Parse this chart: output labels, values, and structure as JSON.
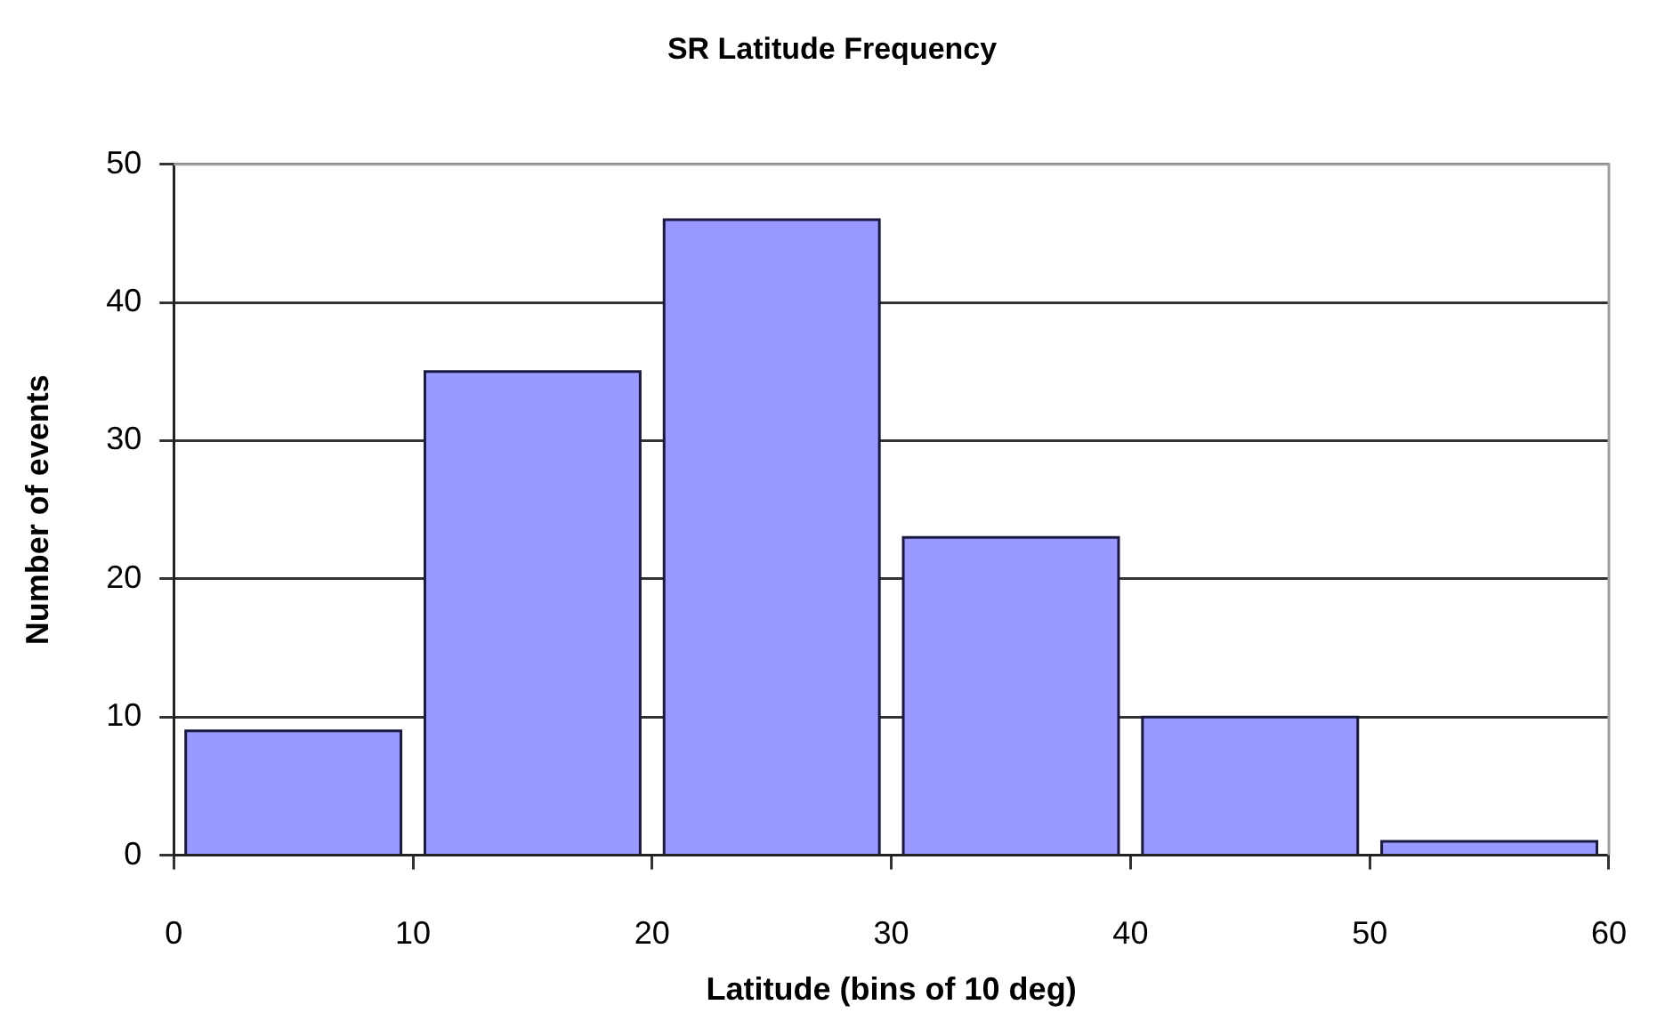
{
  "chart_data": {
    "type": "histogram",
    "title": "SR Latitude Frequency",
    "xlabel": "Latitude (bins of 10 deg)",
    "ylabel": "Number of events",
    "bins": [
      0,
      10,
      20,
      30,
      40,
      50,
      60
    ],
    "values": [
      9,
      35,
      46,
      23,
      10,
      1
    ],
    "color": "#9999ff",
    "xlim": [
      0,
      60
    ],
    "xticks": [
      0,
      10,
      20,
      30,
      40,
      50,
      60
    ],
    "ylim": [
      0,
      50
    ],
    "yticks": [
      0,
      10,
      20,
      30,
      40,
      50
    ],
    "grid": "y"
  }
}
